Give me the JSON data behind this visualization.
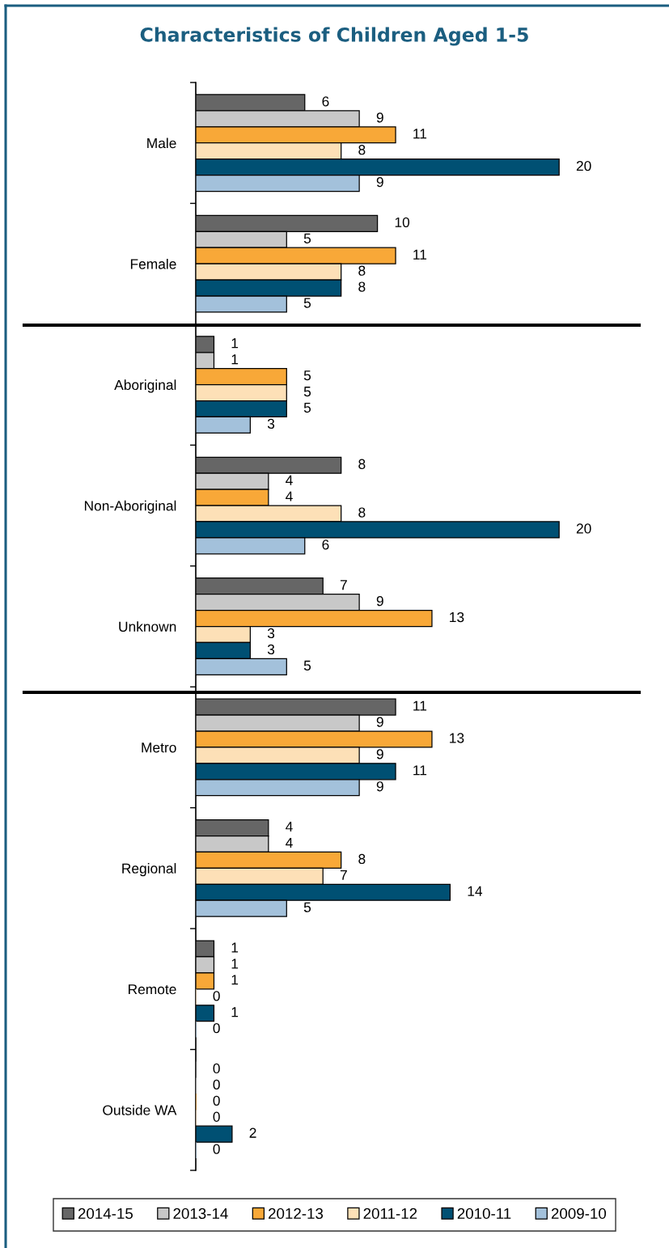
{
  "chart_data": {
    "type": "bar",
    "orientation": "horizontal",
    "title": "Characteristics of Children Aged 1-5",
    "categories": [
      "Male",
      "Female",
      "Aboriginal",
      "Non-Aboriginal",
      "Unknown",
      "Metro",
      "Regional",
      "Remote",
      "Outside WA"
    ],
    "series": [
      {
        "name": "2014-15",
        "color": "#666666",
        "values": [
          6,
          10,
          1,
          8,
          7,
          11,
          4,
          1,
          0
        ]
      },
      {
        "name": "2013-14",
        "color": "#c8c8c8",
        "values": [
          9,
          5,
          1,
          4,
          9,
          9,
          4,
          1,
          0
        ]
      },
      {
        "name": "2012-13",
        "color": "#f8a838",
        "values": [
          11,
          11,
          5,
          4,
          13,
          13,
          8,
          1,
          0
        ]
      },
      {
        "name": "2011-12",
        "color": "#fde0b7",
        "values": [
          8,
          8,
          5,
          8,
          3,
          9,
          7,
          0,
          0
        ]
      },
      {
        "name": "2010-11",
        "color": "#005073",
        "values": [
          20,
          8,
          5,
          20,
          3,
          11,
          14,
          1,
          2
        ]
      },
      {
        "name": "2009-10",
        "color": "#a3c1db",
        "values": [
          9,
          5,
          3,
          6,
          5,
          9,
          5,
          0,
          0
        ]
      }
    ],
    "data_labels": true,
    "legend": "bottom",
    "tick_labels": "y"
  }
}
